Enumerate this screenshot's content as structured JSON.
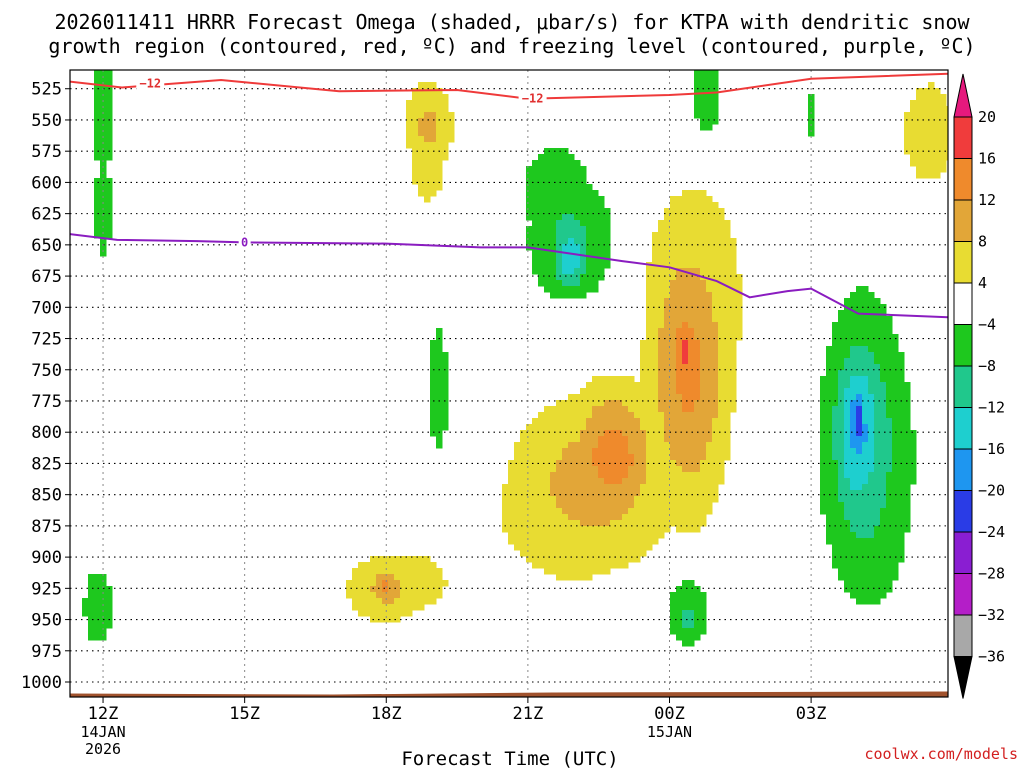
{
  "chart_data": {
    "type": "heatmap",
    "title_line1": "2026011411 HRRR Forecast Omega (shaded, μbar/s) for KTPA with dendritic snow",
    "title_line2": "growth region (contoured, red, ºC) and freezing level (contoured, purple, ºC)",
    "xlabel": "Forecast Time (UTC)",
    "credit": "coolwx.com/models",
    "x_range_hours": [
      -0.7,
      17.9
    ],
    "y_range_mb": [
      510,
      1012
    ],
    "x_ticks": [
      {
        "hour": 0,
        "label": "12Z",
        "sub1": "14JAN",
        "sub2": "2026"
      },
      {
        "hour": 3,
        "label": "15Z",
        "sub1": "",
        "sub2": ""
      },
      {
        "hour": 6,
        "label": "18Z",
        "sub1": "",
        "sub2": ""
      },
      {
        "hour": 9,
        "label": "21Z",
        "sub1": "",
        "sub2": ""
      },
      {
        "hour": 12,
        "label": "00Z",
        "sub1": "15JAN",
        "sub2": ""
      },
      {
        "hour": 15,
        "label": "03Z",
        "sub1": "",
        "sub2": ""
      }
    ],
    "y_ticks": [
      "525",
      "550",
      "575",
      "600",
      "625",
      "650",
      "675",
      "700",
      "725",
      "750",
      "775",
      "800",
      "825",
      "850",
      "875",
      "900",
      "925",
      "950",
      "975",
      "1000"
    ],
    "colorbar": {
      "labels": [
        "20",
        "16",
        "12",
        "8",
        "4",
        "−4",
        "−8",
        "−12",
        "−16",
        "−20",
        "−24",
        "−28",
        "−32",
        "−36"
      ],
      "bins": [
        {
          "from": 16,
          "to": 20,
          "color": "#f03c3c"
        },
        {
          "from": 12,
          "to": 16,
          "color": "#ef8a2c"
        },
        {
          "from": 8,
          "to": 12,
          "color": "#e2a638"
        },
        {
          "from": 4,
          "to": 8,
          "color": "#e8dc32"
        },
        {
          "from": -4,
          "to": 4,
          "color": "#ffffff"
        },
        {
          "from": -8,
          "to": -4,
          "color": "#1ec81e"
        },
        {
          "from": -12,
          "to": -8,
          "color": "#20c88c"
        },
        {
          "from": -16,
          "to": -12,
          "color": "#1ecfcf"
        },
        {
          "from": -20,
          "to": -16,
          "color": "#1e96f0"
        },
        {
          "from": -24,
          "to": -20,
          "color": "#2a3ce6"
        },
        {
          "from": -28,
          "to": -24,
          "color": "#8a1ed2"
        },
        {
          "from": -32,
          "to": -28,
          "color": "#b41ec8"
        },
        {
          "from": -36,
          "to": -32,
          "color": "#a8a8a8"
        }
      ],
      "over_color": "#e6197d",
      "under_color": "#000000"
    },
    "omega_cells": [
      {
        "hour": 0,
        "mb": 540,
        "value": -6,
        "sx": 0.3,
        "sy": 90
      },
      {
        "hour": 0,
        "mb": 620,
        "value": -6,
        "sx": 0.25,
        "sy": 60
      },
      {
        "hour": -0.1,
        "mb": 940,
        "value": -6,
        "sx": 0.45,
        "sy": 45
      },
      {
        "hour": 4.9,
        "mb": 525,
        "value": -2,
        "sx": 0.1,
        "sy": 10
      },
      {
        "hour": 6.9,
        "mb": 555,
        "value": 9,
        "sx": 0.55,
        "sy": 40
      },
      {
        "hour": 6.9,
        "mb": 590,
        "value": 5,
        "sx": 0.7,
        "sy": 50
      },
      {
        "hour": 7.1,
        "mb": 765,
        "value": -6,
        "sx": 0.3,
        "sy": 75
      },
      {
        "hour": 9.9,
        "mb": 660,
        "value": -15,
        "sx": 0.45,
        "sy": 30
      },
      {
        "hour": 9.9,
        "mb": 645,
        "value": -9,
        "sx": 1.0,
        "sy": 55
      },
      {
        "hour": 9.6,
        "mb": 610,
        "value": -6,
        "sx": 1.1,
        "sy": 60
      },
      {
        "hour": 6.0,
        "mb": 925,
        "value": 13,
        "sx": 0.35,
        "sy": 18
      },
      {
        "hour": 6.0,
        "mb": 925,
        "value": 9,
        "sx": 0.9,
        "sy": 30
      },
      {
        "hour": 6.5,
        "mb": 920,
        "value": 5,
        "sx": 1.6,
        "sy": 45
      },
      {
        "hour": 10.8,
        "mb": 820,
        "value": 14,
        "sx": 1.0,
        "sy": 60
      },
      {
        "hour": 10.4,
        "mb": 840,
        "value": 10,
        "sx": 1.9,
        "sy": 75
      },
      {
        "hour": 10.0,
        "mb": 860,
        "value": 6,
        "sx": 2.5,
        "sy": 90
      },
      {
        "hour": 12.3,
        "mb": 735,
        "value": 17,
        "sx": 0.3,
        "sy": 40
      },
      {
        "hour": 12.4,
        "mb": 750,
        "value": 13,
        "sx": 0.9,
        "sy": 120
      },
      {
        "hour": 12.5,
        "mb": 700,
        "value": 6,
        "sx": 1.6,
        "sy": 150
      },
      {
        "hour": 12.8,
        "mb": 525,
        "value": -8,
        "sx": 0.35,
        "sy": 40
      },
      {
        "hour": 15.0,
        "mb": 545,
        "value": -6,
        "sx": 0.15,
        "sy": 25
      },
      {
        "hour": 17.5,
        "mb": 560,
        "value": 6,
        "sx": 0.8,
        "sy": 60
      },
      {
        "hour": 12.4,
        "mb": 950,
        "value": -10,
        "sx": 0.35,
        "sy": 20
      },
      {
        "hour": 12.4,
        "mb": 945,
        "value": -6,
        "sx": 0.65,
        "sy": 40
      },
      {
        "hour": 16.0,
        "mb": 790,
        "value": -22,
        "sx": 0.25,
        "sy": 40
      },
      {
        "hour": 16.0,
        "mb": 800,
        "value": -17,
        "sx": 0.6,
        "sy": 80
      },
      {
        "hour": 16.1,
        "mb": 810,
        "value": -12,
        "sx": 0.9,
        "sy": 120
      },
      {
        "hour": 16.2,
        "mb": 820,
        "value": -7,
        "sx": 1.3,
        "sy": 160
      }
    ],
    "dgz_line": {
      "label": "−12",
      "points": [
        [
          -1,
          518
        ],
        [
          0.4,
          524
        ],
        [
          2.5,
          518
        ],
        [
          5.0,
          527
        ],
        [
          7.5,
          526
        ],
        [
          9.0,
          533
        ],
        [
          12.0,
          530
        ],
        [
          13.0,
          528
        ],
        [
          15.0,
          517
        ],
        [
          17.9,
          513
        ]
      ],
      "label_at": [
        [
          1.0,
          521
        ],
        [
          9.1,
          533
        ]
      ]
    },
    "freezing_line": {
      "label": "0",
      "points": [
        [
          -1,
          640
        ],
        [
          0.3,
          646
        ],
        [
          2.0,
          647
        ],
        [
          3.0,
          648
        ],
        [
          6.0,
          649
        ],
        [
          8.0,
          652
        ],
        [
          9.0,
          652
        ],
        [
          11.0,
          663
        ],
        [
          12.0,
          668
        ],
        [
          13.0,
          679
        ],
        [
          13.7,
          692
        ],
        [
          14.5,
          687
        ],
        [
          15.0,
          685
        ],
        [
          16.0,
          705
        ],
        [
          17.9,
          708
        ]
      ],
      "label_at": [
        [
          3.0,
          648
        ]
      ]
    },
    "terrain_mb": 1010
  }
}
